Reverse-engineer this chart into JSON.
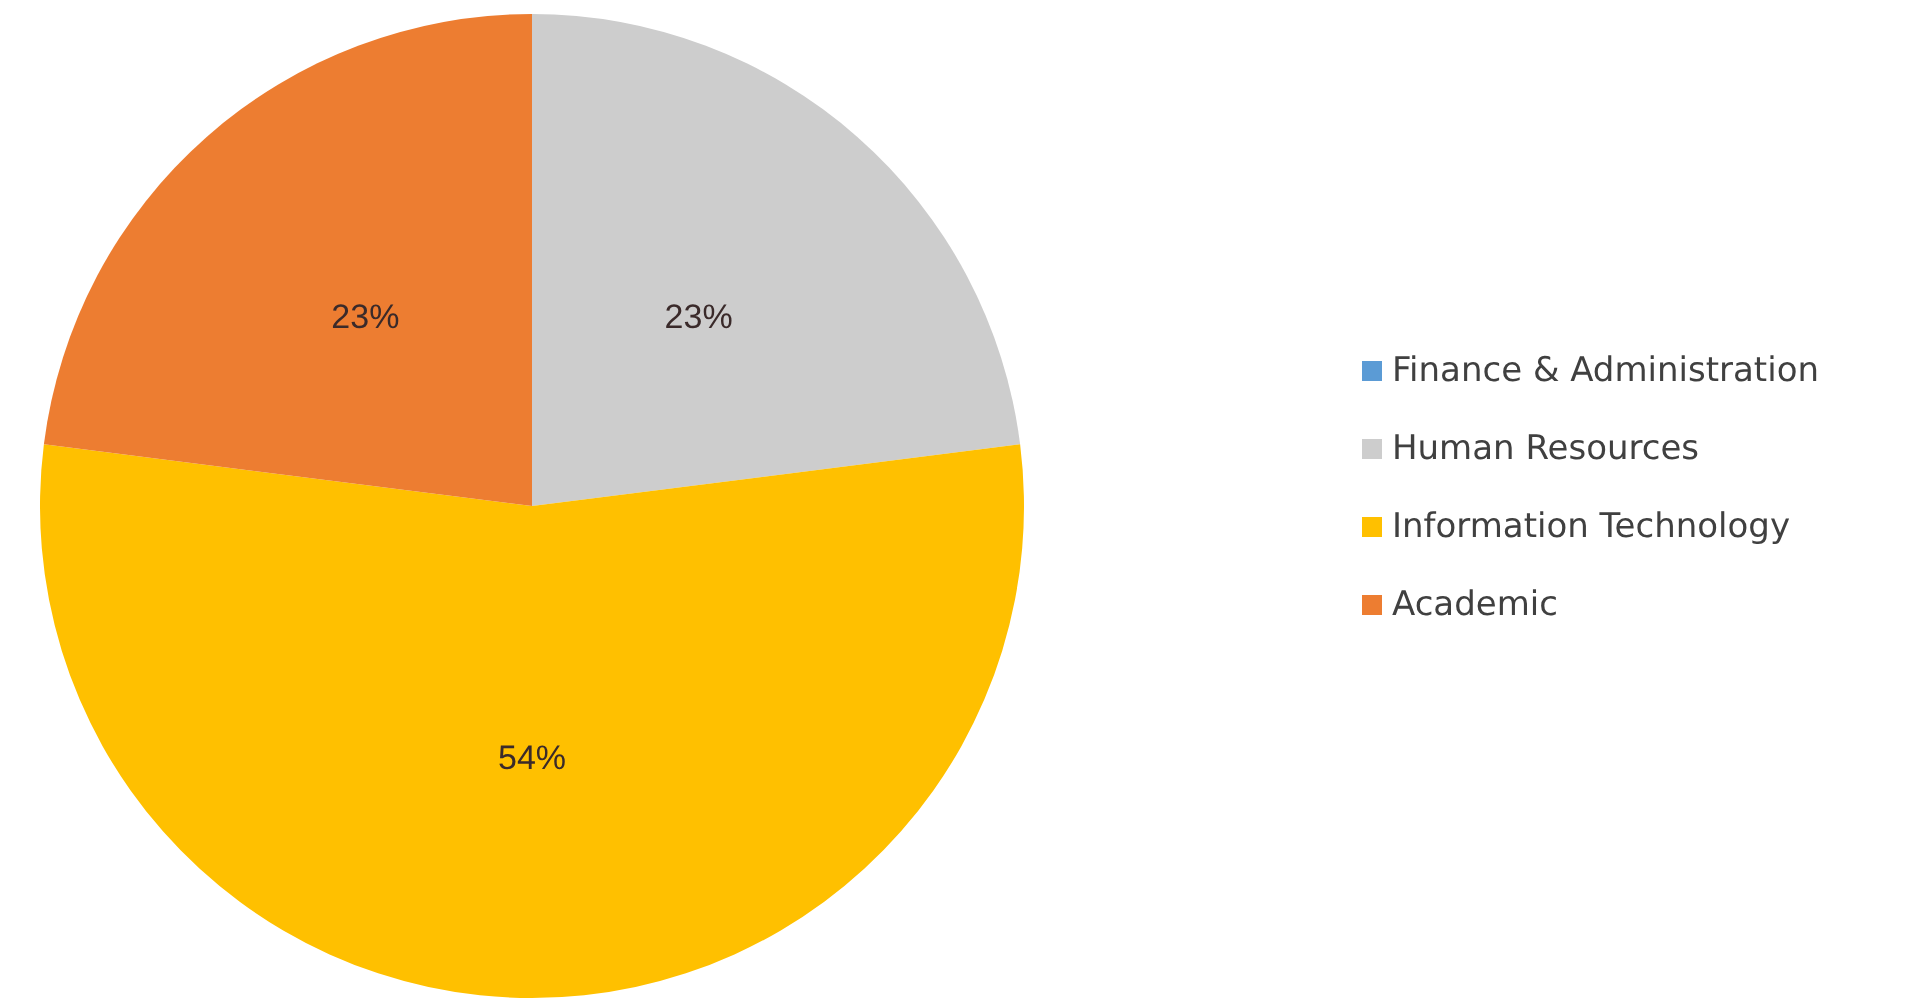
{
  "chart_data": {
    "type": "pie",
    "categories": [
      "Finance & Administration",
      "Human Resources",
      "Information Technology",
      "Academic"
    ],
    "values": [
      0,
      23,
      54,
      23
    ],
    "colors": [
      "#5b9bd5",
      "#cdcdcd",
      "#ffc000",
      "#ed7d31"
    ],
    "value_labels": [
      null,
      "23%",
      "54%",
      "23%"
    ],
    "legend": "right"
  }
}
